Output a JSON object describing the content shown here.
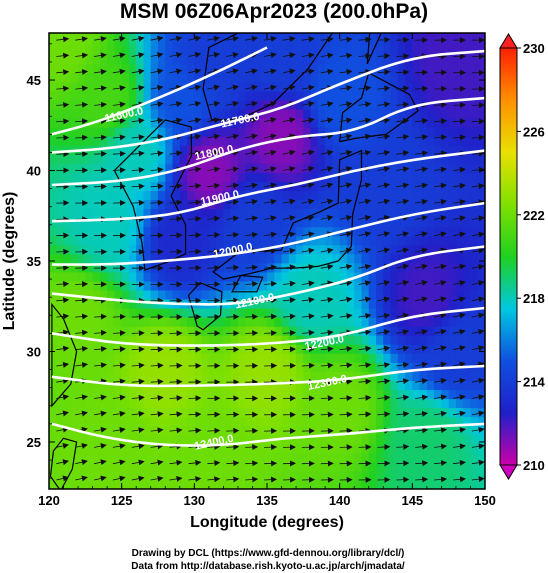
{
  "chart_data": {
    "type": "heatmap",
    "title": "MSM 06Z06Apr2023 (200.0hPa)",
    "xlabel": "Longitude (degrees)",
    "ylabel": "Latitude  (degrees)",
    "xlim": [
      120,
      150
    ],
    "ylim": [
      22.4,
      47.6
    ],
    "xticks": [
      "120",
      "125",
      "130",
      "135",
      "140",
      "145",
      "150"
    ],
    "yticks": [
      "25",
      "30",
      "35",
      "40",
      "45"
    ],
    "colorbar": {
      "range": [
        210,
        230
      ],
      "ticks": [
        "210",
        "214",
        "218",
        "222",
        "226",
        "230"
      ],
      "colors": [
        "#cc00aa",
        "#2020c8",
        "#1050e0",
        "#00c8e0",
        "#20d020",
        "#80e000",
        "#e8e000",
        "#ff9000",
        "#ff2000"
      ]
    },
    "contour_labels": [
      {
        "text": "11600.0",
        "lon": 125.2,
        "lat": 42.9
      },
      {
        "text": "11700.0",
        "lon": 133.2,
        "lat": 42.6
      },
      {
        "text": "11800.0",
        "lon": 131.4,
        "lat": 40.8
      },
      {
        "text": "11900.0",
        "lon": 131.8,
        "lat": 38.3
      },
      {
        "text": "12000.0",
        "lon": 132.7,
        "lat": 35.4
      },
      {
        "text": "12100.0",
        "lon": 134.2,
        "lat": 32.6
      },
      {
        "text": "12200.0",
        "lon": 139.0,
        "lat": 30.3
      },
      {
        "text": "12300.0",
        "lon": 139.2,
        "lat": 28.1
      },
      {
        "text": "12400.0",
        "lon": 131.4,
        "lat": 24.8
      }
    ],
    "contours": [
      {
        "value": 11600,
        "points": [
          [
            120.2,
            42.0
          ],
          [
            123,
            42.6
          ],
          [
            126,
            43.5
          ],
          [
            129,
            44.5
          ],
          [
            132,
            45.6
          ],
          [
            135,
            46.8
          ]
        ]
      },
      {
        "value": 11700,
        "points": [
          [
            120.2,
            41.0
          ],
          [
            124,
            41.2
          ],
          [
            128,
            41.7
          ],
          [
            132,
            42.6
          ],
          [
            136,
            43.4
          ],
          [
            140,
            44.8
          ],
          [
            145,
            46.3
          ],
          [
            150,
            46.6
          ]
        ]
      },
      {
        "value": 11800,
        "points": [
          [
            120.2,
            39.2
          ],
          [
            125,
            39.4
          ],
          [
            129,
            40.0
          ],
          [
            133,
            41.2
          ],
          [
            137,
            41.9
          ],
          [
            141,
            42.1
          ],
          [
            145,
            43.7
          ],
          [
            150,
            44.0
          ]
        ]
      },
      {
        "value": 11900,
        "points": [
          [
            120.2,
            37.2
          ],
          [
            125,
            37.3
          ],
          [
            129,
            37.6
          ],
          [
            133,
            38.6
          ],
          [
            137,
            39.2
          ],
          [
            141,
            40.0
          ],
          [
            145,
            40.6
          ],
          [
            150,
            41.1
          ]
        ]
      },
      {
        "value": 12000,
        "points": [
          [
            120.2,
            34.8
          ],
          [
            124,
            34.8
          ],
          [
            128,
            35.0
          ],
          [
            132,
            35.3
          ],
          [
            136,
            35.8
          ],
          [
            140,
            36.6
          ],
          [
            145,
            37.6
          ],
          [
            150,
            38.2
          ]
        ]
      },
      {
        "value": 12100,
        "points": [
          [
            120.2,
            33.2
          ],
          [
            125,
            32.8
          ],
          [
            129,
            32.6
          ],
          [
            133,
            32.6
          ],
          [
            137,
            33.2
          ],
          [
            141,
            34.0
          ],
          [
            145,
            35.3
          ],
          [
            150,
            35.8
          ]
        ]
      },
      {
        "value": 12200,
        "points": [
          [
            120.2,
            31.0
          ],
          [
            125,
            30.4
          ],
          [
            130,
            30.3
          ],
          [
            135,
            30.4
          ],
          [
            140,
            30.8
          ],
          [
            145,
            32.0
          ],
          [
            150,
            32.4
          ]
        ]
      },
      {
        "value": 12300,
        "points": [
          [
            120.2,
            28.6
          ],
          [
            125,
            28.1
          ],
          [
            130,
            28.1
          ],
          [
            135,
            28.2
          ],
          [
            140,
            28.4
          ],
          [
            145,
            29.0
          ],
          [
            150,
            29.2
          ]
        ]
      },
      {
        "value": 12400,
        "points": [
          [
            120.2,
            26.0
          ],
          [
            124,
            25.2
          ],
          [
            128,
            24.8
          ],
          [
            132,
            24.8
          ],
          [
            136,
            25.2
          ],
          [
            140,
            25.4
          ],
          [
            145,
            25.8
          ],
          [
            150,
            26.0
          ]
        ]
      }
    ],
    "color_field_samples": [
      {
        "lon": 121,
        "lat": 47,
        "value": 222
      },
      {
        "lon": 124,
        "lat": 44,
        "value": 221
      },
      {
        "lon": 126,
        "lat": 41,
        "value": 218
      },
      {
        "lon": 129,
        "lat": 44,
        "value": 215
      },
      {
        "lon": 131,
        "lat": 46,
        "value": 214
      },
      {
        "lon": 136,
        "lat": 42,
        "value": 211
      },
      {
        "lon": 136,
        "lat": 46,
        "value": 214
      },
      {
        "lon": 131,
        "lat": 40,
        "value": 211
      },
      {
        "lon": 140,
        "lat": 44,
        "value": 215
      },
      {
        "lon": 148,
        "lat": 46,
        "value": 212
      },
      {
        "lon": 129,
        "lat": 36,
        "value": 213
      },
      {
        "lon": 134,
        "lat": 37,
        "value": 214
      },
      {
        "lon": 143,
        "lat": 39,
        "value": 214
      },
      {
        "lon": 146,
        "lat": 33,
        "value": 212
      },
      {
        "lon": 148,
        "lat": 30,
        "value": 214
      },
      {
        "lon": 124,
        "lat": 37,
        "value": 218
      },
      {
        "lon": 138,
        "lat": 33,
        "value": 218
      },
      {
        "lon": 122,
        "lat": 32,
        "value": 222
      },
      {
        "lon": 128,
        "lat": 29,
        "value": 223
      },
      {
        "lon": 135,
        "lat": 29,
        "value": 223
      },
      {
        "lon": 140,
        "lat": 27,
        "value": 222
      },
      {
        "lon": 124,
        "lat": 25,
        "value": 222
      },
      {
        "lon": 131,
        "lat": 24,
        "value": 222
      },
      {
        "lon": 146,
        "lat": 25,
        "value": 219
      }
    ],
    "wind_direction": "westerly (west-to-east)",
    "grid": false
  },
  "credits": {
    "line1": "Drawing by DCL (https://www.gfd-dennou.org/library/dcl/)",
    "line2": "Data from http://database.rish.kyoto-u.ac.jp/arch/jmadata/"
  }
}
